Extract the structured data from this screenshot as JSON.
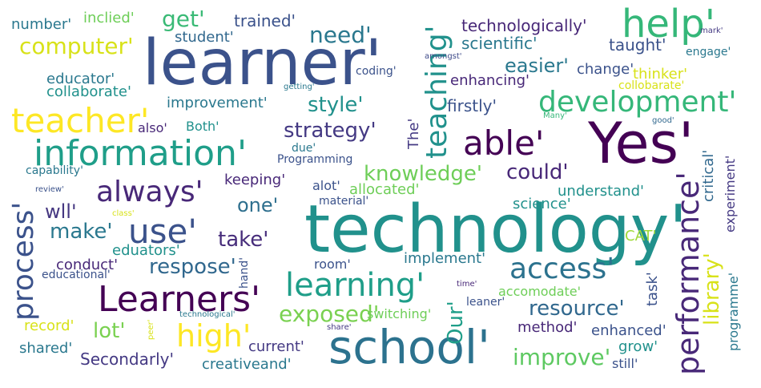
{
  "words": [
    {
      "text": "learner'",
      "color": "#3b528b"
    },
    {
      "text": "technology'",
      "color": "#21918c"
    },
    {
      "text": "Yes'",
      "color": "#440154"
    },
    {
      "text": "school'",
      "color": "#2c728e"
    },
    {
      "text": "information'",
      "color": "#1f9e89"
    },
    {
      "text": "Learners'",
      "color": "#440154"
    },
    {
      "text": "help'",
      "color": "#35b779"
    },
    {
      "text": "able'",
      "color": "#440154"
    },
    {
      "text": "teacher'",
      "color": "#fde725"
    },
    {
      "text": "use'",
      "color": "#3b528b"
    },
    {
      "text": "learning'",
      "color": "#1f9e89"
    },
    {
      "text": "development'",
      "color": "#35b779"
    },
    {
      "text": "always'",
      "color": "#482878"
    },
    {
      "text": "high'",
      "color": "#fde725"
    },
    {
      "text": "access'",
      "color": "#2c728e"
    },
    {
      "text": "performance'",
      "color": "#482878"
    },
    {
      "text": "teaching'",
      "color": "#21918c"
    },
    {
      "text": "process'",
      "color": "#3b528b"
    },
    {
      "text": "computer'",
      "color": "#d8e219"
    },
    {
      "text": "need'",
      "color": "#2a788e"
    },
    {
      "text": "get'",
      "color": "#3aba76"
    },
    {
      "text": "exposed'",
      "color": "#7ad151"
    },
    {
      "text": "improve'",
      "color": "#5ec962"
    },
    {
      "text": "resource'",
      "color": "#31688e"
    },
    {
      "text": "strategy'",
      "color": "#443983"
    },
    {
      "text": "knowledge'",
      "color": "#6ece58"
    },
    {
      "text": "respose'",
      "color": "#31688e"
    },
    {
      "text": "could'",
      "color": "#482878"
    },
    {
      "text": "style'",
      "color": "#21918c"
    },
    {
      "text": "lot'",
      "color": "#7ad151"
    },
    {
      "text": "make'",
      "color": "#2a788e"
    },
    {
      "text": "take'",
      "color": "#472d7b"
    },
    {
      "text": "wll'",
      "color": "#453781"
    },
    {
      "text": "one'",
      "color": "#2e6f8e"
    },
    {
      "text": "easier'",
      "color": "#2a788e"
    },
    {
      "text": "Our'",
      "color": "#1f9e89"
    },
    {
      "text": "library'",
      "color": "#d8e219"
    },
    {
      "text": "trained'",
      "color": "#3b528b"
    },
    {
      "text": "technologically'",
      "color": "#482878"
    },
    {
      "text": "scientific'",
      "color": "#2a788e"
    },
    {
      "text": "taught'",
      "color": "#3b528b"
    },
    {
      "text": "number'",
      "color": "#2a788e"
    },
    {
      "text": "inclied'",
      "color": "#6ece58"
    },
    {
      "text": "student'",
      "color": "#31688e"
    },
    {
      "text": "educator'",
      "color": "#2a788e"
    },
    {
      "text": "collaborate'",
      "color": "#21918c"
    },
    {
      "text": "improvement'",
      "color": "#2a788e"
    },
    {
      "text": "firstly'",
      "color": "#3b528b"
    },
    {
      "text": "enhancing'",
      "color": "#482878"
    },
    {
      "text": "change'",
      "color": "#3b528b"
    },
    {
      "text": "thinker'",
      "color": "#d8e219"
    },
    {
      "text": "collobarate'",
      "color": "#d8e219"
    },
    {
      "text": "engage'",
      "color": "#2a788e"
    },
    {
      "text": "mark'",
      "color": "#443983"
    },
    {
      "text": "amongst'",
      "color": "#3e4a89"
    },
    {
      "text": "getting'",
      "color": "#2a788e"
    },
    {
      "text": "coding'",
      "color": "#3b528b"
    },
    {
      "text": "also'",
      "color": "#482878"
    },
    {
      "text": "Both'",
      "color": "#21918c"
    },
    {
      "text": "The'",
      "color": "#443983"
    },
    {
      "text": "due'",
      "color": "#2a788e"
    },
    {
      "text": "Programming",
      "color": "#3b528b"
    },
    {
      "text": "Many'",
      "color": "#35b779"
    },
    {
      "text": "good'",
      "color": "#31688e"
    },
    {
      "text": "critical'",
      "color": "#31688e"
    },
    {
      "text": "experiment'",
      "color": "#443983"
    },
    {
      "text": "capability'",
      "color": "#2a788e"
    },
    {
      "text": "review'",
      "color": "#3b528b"
    },
    {
      "text": "keeping'",
      "color": "#482878"
    },
    {
      "text": "alot'",
      "color": "#3b528b"
    },
    {
      "text": "allocated'",
      "color": "#6ece58"
    },
    {
      "text": "understand'",
      "color": "#21918c"
    },
    {
      "text": "material'",
      "color": "#3b528b"
    },
    {
      "text": "science'",
      "color": "#21918c"
    },
    {
      "text": "class'",
      "color": "#d8e219"
    },
    {
      "text": "eduators'",
      "color": "#21918c"
    },
    {
      "text": "CAT'",
      "color": "#a0da39"
    },
    {
      "text": "programme'",
      "color": "#2a788e"
    },
    {
      "text": "conduct'",
      "color": "#482878"
    },
    {
      "text": "educational'",
      "color": "#3b528b"
    },
    {
      "text": "room'",
      "color": "#3b528b"
    },
    {
      "text": "implement'",
      "color": "#2a788e"
    },
    {
      "text": "hand'",
      "color": "#3b528b"
    },
    {
      "text": "accomodate'",
      "color": "#6ece58"
    },
    {
      "text": "task'",
      "color": "#3b528b"
    },
    {
      "text": "time'",
      "color": "#482878"
    },
    {
      "text": "leaner'",
      "color": "#3b528b"
    },
    {
      "text": "switching'",
      "color": "#6ece58"
    },
    {
      "text": "technological'",
      "color": "#2a788e"
    },
    {
      "text": "record'",
      "color": "#d8e219"
    },
    {
      "text": "peer'",
      "color": "#d8e219"
    },
    {
      "text": "share'",
      "color": "#443983"
    },
    {
      "text": "method'",
      "color": "#482878"
    },
    {
      "text": "enhanced'",
      "color": "#3b528b"
    },
    {
      "text": "shared'",
      "color": "#2a788e"
    },
    {
      "text": "current'",
      "color": "#443983"
    },
    {
      "text": "grow'",
      "color": "#21918c"
    },
    {
      "text": "Secondarly'",
      "color": "#443983"
    },
    {
      "text": "creativeand'",
      "color": "#2a788e"
    },
    {
      "text": "still'",
      "color": "#3b528b"
    }
  ]
}
